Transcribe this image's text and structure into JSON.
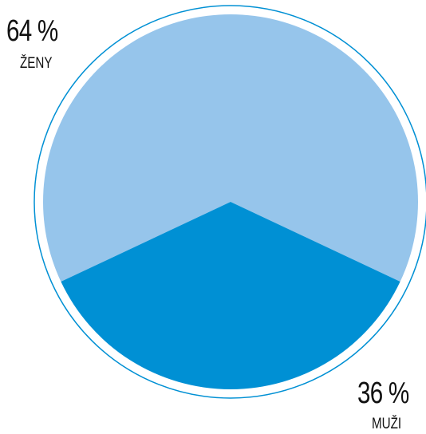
{
  "chart_data": {
    "type": "pie",
    "title": "",
    "slices": [
      {
        "label": "ŽENY",
        "value": 64,
        "value_label": "64 %",
        "color": "#96c5eb"
      },
      {
        "label": "MUŽI",
        "value": 36,
        "value_label": "36 %",
        "color": "#0090d4"
      }
    ],
    "outline_color": "#0090d4"
  }
}
